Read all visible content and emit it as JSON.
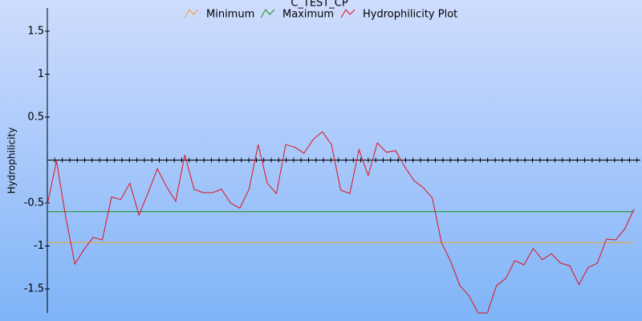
{
  "chart_data": {
    "type": "line",
    "title": "C_TEST_CP",
    "ylabel": "Hydrophilicity",
    "ylim": [
      -1.78,
      1.77
    ],
    "yticks": [
      1.5,
      1,
      0.5,
      -0.5,
      -1,
      -1.5
    ],
    "series": [
      {
        "name": "Minimum",
        "color": "#f0a030",
        "values": [
          -0.96,
          -0.96,
          -0.96,
          -0.96,
          -0.96,
          -0.96,
          -0.96,
          -0.96,
          -0.96,
          -0.96,
          -0.96,
          -0.96,
          -0.96,
          -0.96,
          -0.96,
          -0.96,
          -0.96,
          -0.96,
          -0.96,
          -0.96,
          -0.96,
          -0.96,
          -0.96,
          -0.96,
          -0.96,
          -0.96,
          -0.96,
          -0.96,
          -0.96,
          -0.96,
          -0.96,
          -0.96,
          -0.96,
          -0.96,
          -0.96,
          -0.96,
          -0.96,
          -0.96,
          -0.96,
          -0.96,
          -0.96,
          -0.96,
          -0.96,
          -0.96,
          -0.96,
          -0.96,
          -0.96,
          -0.96,
          -0.96,
          -0.96,
          -0.96,
          -0.96,
          -0.96,
          -0.96,
          -0.96,
          -0.96,
          -0.96,
          -0.96,
          -0.96,
          -0.96,
          -0.96,
          -0.96,
          -0.96,
          -0.96,
          -0.96
        ]
      },
      {
        "name": "Maximum",
        "color": "#1a8a1a",
        "values": [
          -0.6,
          -0.6,
          -0.6,
          -0.6,
          -0.6,
          -0.6,
          -0.6,
          -0.6,
          -0.6,
          -0.6,
          -0.6,
          -0.6,
          -0.6,
          -0.6,
          -0.6,
          -0.6,
          -0.6,
          -0.6,
          -0.6,
          -0.6,
          -0.6,
          -0.6,
          -0.6,
          -0.6,
          -0.6,
          -0.6,
          -0.6,
          -0.6,
          -0.6,
          -0.6,
          -0.6,
          -0.6,
          -0.6,
          -0.6,
          -0.6,
          -0.6,
          -0.6,
          -0.6,
          -0.6,
          -0.6,
          -0.6,
          -0.6,
          -0.6,
          -0.6,
          -0.6,
          -0.6,
          -0.6,
          -0.6,
          -0.6,
          -0.6,
          -0.6,
          -0.6,
          -0.6,
          -0.6,
          -0.6,
          -0.6,
          -0.6,
          -0.6,
          -0.6,
          -0.6,
          -0.6,
          -0.6,
          -0.6,
          -0.6,
          -0.6
        ]
      },
      {
        "name": "Hydrophilicity Plot",
        "color": "#e0101a",
        "values": [
          -0.52,
          -0.01,
          -0.66,
          -1.21,
          -1.04,
          -0.9,
          -0.93,
          -0.43,
          -0.46,
          -0.27,
          -0.64,
          -0.38,
          -0.1,
          -0.31,
          -0.48,
          0.06,
          -0.34,
          -0.38,
          -0.38,
          -0.34,
          -0.5,
          -0.56,
          -0.34,
          0.18,
          -0.27,
          -0.39,
          0.18,
          0.15,
          0.08,
          0.24,
          0.33,
          0.18,
          -0.35,
          -0.39,
          0.12,
          -0.18,
          0.2,
          0.09,
          0.11,
          -0.08,
          -0.24,
          -0.32,
          -0.44,
          -0.96,
          -1.18,
          -1.46,
          -1.58,
          -1.78,
          -1.78,
          -1.46,
          -1.38,
          -1.17,
          -1.22,
          -1.03,
          -1.16,
          -1.09,
          -1.2,
          -1.23,
          -1.45,
          -1.25,
          -1.2,
          -0.92,
          -0.93,
          -0.8,
          -0.57
        ]
      }
    ]
  }
}
